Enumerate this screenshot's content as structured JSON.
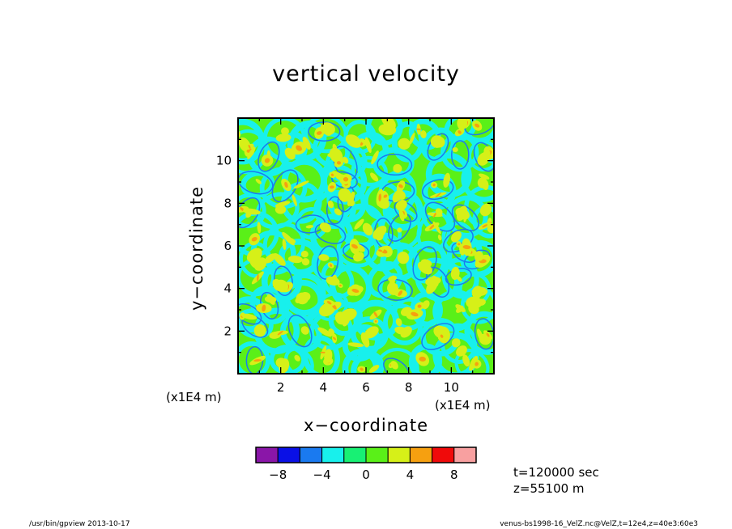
{
  "chart_data": {
    "type": "heatmap",
    "title": "vertical velocity",
    "xlabel": "x−coordinate",
    "ylabel": "y−coordinate",
    "x_scale_label": "(x1E4 m)",
    "y_scale_label": "(x1E4 m)",
    "xlim": [
      0,
      12
    ],
    "ylim": [
      0,
      12
    ],
    "x_ticks": [
      2,
      4,
      6,
      8,
      10
    ],
    "y_ticks": [
      2,
      4,
      6,
      8,
      10
    ],
    "x_tick_labels": [
      "2",
      "4",
      "6",
      "8",
      "10"
    ],
    "y_tick_labels": [
      "2",
      "4",
      "6",
      "8",
      "10"
    ],
    "colorbar": {
      "levels": [
        -10,
        -8,
        -6,
        -4,
        -2,
        0,
        2,
        4,
        6,
        8,
        10
      ],
      "colors": [
        "#8a16a8",
        "#0a10e6",
        "#1a7af0",
        "#18f0ec",
        "#18f074",
        "#5af018",
        "#d6f018",
        "#f6a010",
        "#f00a0a",
        "#f8a0a0"
      ],
      "tick_values": [
        -8,
        -4,
        0,
        4,
        8
      ],
      "tick_labels": [
        "−8",
        "−4",
        "0",
        "4",
        "8"
      ]
    },
    "field_description_colors": {
      "background": "#5af018",
      "updraft_cells": "#d6f018",
      "strong_updraft": "#f6a010",
      "downdraft_lanes": "#18f0ec",
      "strong_downdraft": "#1a7af0"
    }
  },
  "annotations": {
    "time": "t=120000 sec",
    "height": "z=55100 m"
  },
  "footer": {
    "left": "/usr/bin/gpview   2013-10-17",
    "right": "venus-bs1998-16_VelZ.nc@VelZ,t=12e4,z=40e3:60e3"
  }
}
